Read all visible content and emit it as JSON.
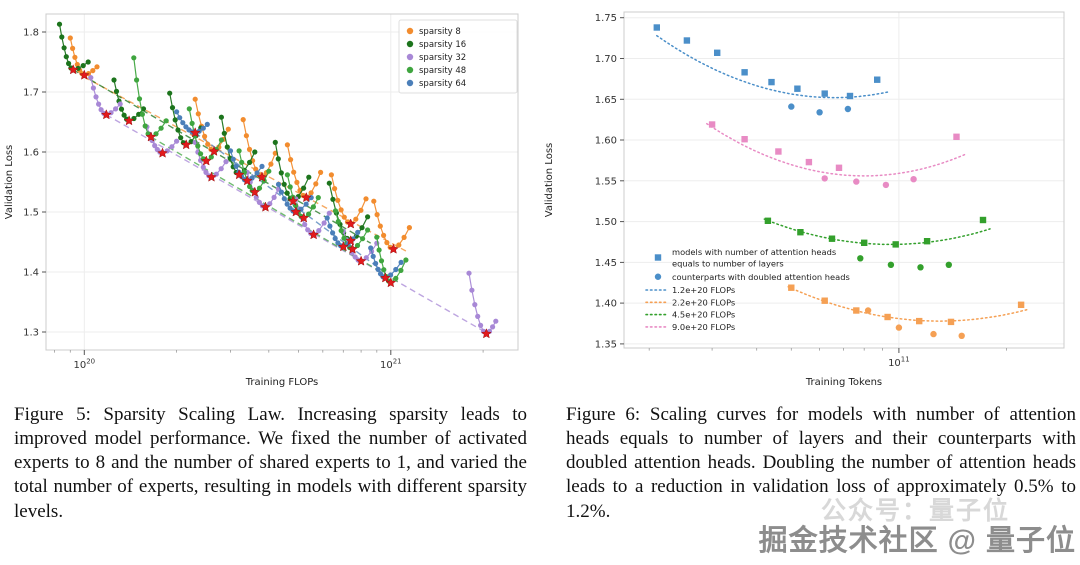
{
  "figures": [
    {
      "id": "figure-5",
      "caption": "Figure 5: Sparsity Scaling Law. Increasing sparsity leads to improved model performance. We fixed the number of activated experts to 8 and the number of shared experts to 1, and varied the total number of experts, resulting in models with different sparsity levels."
    },
    {
      "id": "figure-6",
      "caption": "Figure 6: Scaling curves for models with number of attention heads equals to number of layers and their counterparts with doubled attention heads. Doubling the number of attention heads leads to a reduction in validation loss of approximately 0.5% to 1.2%."
    }
  ],
  "watermark": {
    "text": "掘金技术社区 @ 量子位",
    "faint_text": "公众号：量子位"
  },
  "chart_data": [
    {
      "type": "scatter",
      "title": "Sparsity Scaling Law",
      "xlabel": "Training FLOPs",
      "ylabel": "Validation Loss",
      "x_scale": "log",
      "xlim": [
        7.5e+19,
        2.6e+21
      ],
      "ylim": [
        1.27,
        1.83
      ],
      "x_ticks": [
        [
          1e+20,
          "10",
          "20"
        ],
        [
          1e+21,
          "10",
          "21"
        ]
      ],
      "y_ticks": [
        [
          1.3,
          "1.3"
        ],
        [
          1.4,
          "1.4"
        ],
        [
          1.5,
          "1.5"
        ],
        [
          1.6,
          "1.6"
        ],
        [
          1.7,
          "1.7"
        ],
        [
          1.8,
          "1.8"
        ]
      ],
      "grid": true,
      "legend_position": "upper right",
      "star_color": "#e31a1c",
      "series": [
        {
          "name": "sparsity 8",
          "color": "#f28c2e",
          "fit": [
            1e+20,
            1.725,
            1.12e+21,
            1.435
          ],
          "curves": [
            [
              9e+19,
              1.79,
              1e+20,
              1.728,
              1.1e+20,
              1.742
            ],
            [
              2.3e+20,
              1.688,
              2.65e+20,
              1.601,
              2.95e+20,
              1.638
            ],
            [
              3.3e+20,
              1.654,
              3.8e+20,
              1.558,
              4.2e+20,
              1.598
            ],
            [
              4.6e+20,
              1.612,
              5.3e+20,
              1.524,
              5.9e+20,
              1.566
            ],
            [
              6.4e+20,
              1.562,
              7.4e+20,
              1.48,
              8.3e+20,
              1.522
            ],
            [
              8.8e+20,
              1.518,
              1.02e+21,
              1.438,
              1.15e+21,
              1.474
            ]
          ]
        },
        {
          "name": "sparsity 16",
          "color": "#1c741c",
          "fit": [
            9.2e+19,
            1.737,
            8.6e+20,
            1.448
          ],
          "curves": [
            [
              8.3e+19,
              1.813,
              9.2e+19,
              1.737,
              1.03e+20,
              1.75
            ],
            [
              1.25e+20,
              1.72,
              1.4e+20,
              1.652,
              1.56e+20,
              1.672
            ],
            [
              1.9e+20,
              1.698,
              2.15e+20,
              1.612,
              2.4e+20,
              1.64
            ],
            [
              2.8e+20,
              1.658,
              3.2e+20,
              1.562,
              3.6e+20,
              1.6
            ],
            [
              4.2e+20,
              1.616,
              4.8e+20,
              1.518,
              5.4e+20,
              1.558
            ],
            [
              6.3e+20,
              1.548,
              7.4e+20,
              1.452,
              8.4e+20,
              1.492
            ]
          ]
        },
        {
          "name": "sparsity 32",
          "color": "#a888d6",
          "fit": [
            1.18e+20,
            1.662,
            2.08e+21,
            1.297
          ],
          "curves": [
            [
              1.05e+20,
              1.724,
              1.18e+20,
              1.662,
              1.31e+20,
              1.68
            ],
            [
              1.6e+20,
              1.642,
              1.8e+20,
              1.598,
              2e+20,
              1.618
            ],
            [
              2.3e+20,
              1.616,
              2.6e+20,
              1.558,
              2.9e+20,
              1.584
            ],
            [
              3.4e+20,
              1.566,
              3.9e+20,
              1.508,
              4.3e+20,
              1.538
            ],
            [
              4.9e+20,
              1.522,
              5.6e+20,
              1.462,
              6.3e+20,
              1.498
            ],
            [
              7e+20,
              1.468,
              8e+20,
              1.418,
              9e+20,
              1.448
            ],
            [
              1.8e+21,
              1.398,
              2.05e+21,
              1.297,
              2.2e+21,
              1.318
            ]
          ]
        },
        {
          "name": "sparsity 48",
          "color": "#3fa53f",
          "fit": [
            1.65e+20,
            1.625,
            1.06e+21,
            1.383
          ],
          "curves": [
            [
              1.45e+20,
              1.757,
              1.65e+20,
              1.625,
              1.85e+20,
              1.652
            ],
            [
              2.2e+20,
              1.672,
              2.5e+20,
              1.585,
              2.8e+20,
              1.62
            ],
            [
              3.2e+20,
              1.602,
              3.6e+20,
              1.533,
              4e+20,
              1.568
            ],
            [
              4.6e+20,
              1.562,
              5.2e+20,
              1.49,
              5.8e+20,
              1.524
            ],
            [
              6.6e+20,
              1.502,
              7.5e+20,
              1.438,
              8.4e+20,
              1.47
            ],
            [
              9e+20,
              1.458,
              1e+21,
              1.382,
              1.12e+21,
              1.42
            ]
          ]
        },
        {
          "name": "sparsity 64",
          "color": "#4b7fb9",
          "fit": [
            2.3e+20,
            1.632,
            1e+21,
            1.392
          ],
          "curves": [
            [
              2e+20,
              1.667,
              2.3e+20,
              1.632,
              2.52e+20,
              1.646
            ],
            [
              3e+20,
              1.602,
              3.4e+20,
              1.552,
              3.8e+20,
              1.576
            ],
            [
              4.3e+20,
              1.546,
              4.9e+20,
              1.5,
              5.5e+20,
              1.524
            ],
            [
              6.2e+20,
              1.49,
              7e+20,
              1.442,
              7.8e+20,
              1.466
            ],
            [
              8.6e+20,
              1.44,
              9.6e+20,
              1.39,
              1.08e+21,
              1.416
            ]
          ]
        }
      ]
    },
    {
      "type": "scatter",
      "title": "Scaling curves: attention heads vs layers",
      "xlabel": "Training Tokens",
      "ylabel": "Validation Loss",
      "x_scale": "log",
      "xlim": [
        17000000000.0,
        290000000000.0
      ],
      "ylim": [
        1.345,
        1.757
      ],
      "x_ticks": [
        [
          100000000000.0,
          "10",
          "11"
        ]
      ],
      "y_ticks": [
        [
          1.35,
          "1.35"
        ],
        [
          1.4,
          "1.40"
        ],
        [
          1.45,
          "1.45"
        ],
        [
          1.5,
          "1.50"
        ],
        [
          1.55,
          "1.55"
        ],
        [
          1.6,
          "1.60"
        ],
        [
          1.65,
          "1.65"
        ],
        [
          1.7,
          "1.70"
        ],
        [
          1.75,
          "1.75"
        ]
      ],
      "grid": true,
      "legend_position": "lower left",
      "marker_legend": [
        {
          "marker": "square",
          "label": "models with number of attention heads\nequals to number of layers"
        },
        {
          "marker": "circle",
          "label": "counterparts with doubled attention heads"
        }
      ],
      "series": [
        {
          "name": "1.2e+20 FLOPs",
          "color": "#4b8fc9",
          "squares": [
            [
              21000000000.0,
              1.738
            ],
            [
              25500000000.0,
              1.722
            ],
            [
              31000000000.0,
              1.707
            ],
            [
              37000000000.0,
              1.683
            ],
            [
              44000000000.0,
              1.671
            ],
            [
              52000000000.0,
              1.663
            ],
            [
              62000000000.0,
              1.657
            ],
            [
              73000000000.0,
              1.654
            ],
            [
              87000000000.0,
              1.674
            ]
          ],
          "circles": [
            [
              50000000000.0,
              1.641
            ],
            [
              60000000000.0,
              1.634
            ],
            [
              72000000000.0,
              1.638
            ]
          ],
          "fit": [
            66000000000.0,
            1.652,
            21000000000.0,
            1.728,
            93000000000.0
          ]
        },
        {
          "name": "2.2e+20 FLOPs",
          "color": "#f5a054",
          "squares": [
            [
              50000000000.0,
              1.419
            ],
            [
              62000000000.0,
              1.403
            ],
            [
              76000000000.0,
              1.391
            ],
            [
              93000000000.0,
              1.383
            ],
            [
              114000000000.0,
              1.378
            ],
            [
              140000000000.0,
              1.377
            ],
            [
              220000000000.0,
              1.398
            ]
          ],
          "circles": [
            [
              82000000000.0,
              1.391
            ],
            [
              100000000000.0,
              1.37
            ],
            [
              125000000000.0,
              1.362
            ],
            [
              150000000000.0,
              1.36
            ]
          ],
          "fit": [
            130000000000.0,
            1.378,
            49000000000.0,
            1.42,
            230000000000.0
          ]
        },
        {
          "name": "4.5e+20 FLOPs",
          "color": "#33a02c",
          "squares": [
            [
              43000000000.0,
              1.501
            ],
            [
              53000000000.0,
              1.487
            ],
            [
              65000000000.0,
              1.479
            ],
            [
              80000000000.0,
              1.474
            ],
            [
              98000000000.0,
              1.472
            ],
            [
              120000000000.0,
              1.476
            ],
            [
              172000000000.0,
              1.502
            ]
          ],
          "circles": [
            [
              78000000000.0,
              1.455
            ],
            [
              95000000000.0,
              1.447
            ],
            [
              115000000000.0,
              1.444
            ],
            [
              138000000000.0,
              1.447
            ]
          ],
          "fit": [
            95000000000.0,
            1.472,
            42000000000.0,
            1.503,
            180000000000.0
          ]
        },
        {
          "name": "9.0e+20 FLOPs",
          "color": "#e88bc4",
          "squares": [
            [
              30000000000.0,
              1.619
            ],
            [
              37000000000.0,
              1.601
            ],
            [
              46000000000.0,
              1.586
            ],
            [
              56000000000.0,
              1.573
            ],
            [
              68000000000.0,
              1.566
            ],
            [
              145000000000.0,
              1.604
            ]
          ],
          "circles": [
            [
              62000000000.0,
              1.553
            ],
            [
              76000000000.0,
              1.549
            ],
            [
              92000000000.0,
              1.545
            ],
            [
              110000000000.0,
              1.552
            ]
          ],
          "fit": [
            80000000000.0,
            1.556,
            29000000000.0,
            1.62,
            155000000000.0
          ]
        }
      ]
    }
  ]
}
